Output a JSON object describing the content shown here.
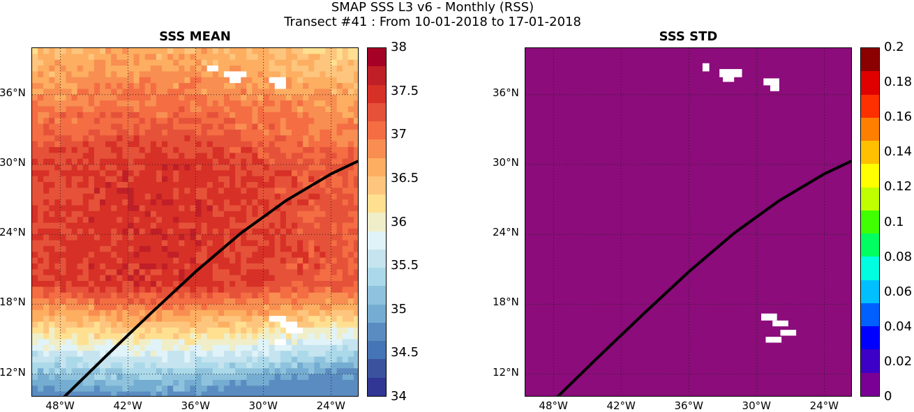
{
  "figure": {
    "title": "SMAP SSS L3 v6 - Monthly (RSS)",
    "subtitle": "Transect #41 : From 10-01-2018 to 17-01-2018"
  },
  "axes": {
    "lon_ticks": [
      "48°W",
      "42°W",
      "36°W",
      "30°W",
      "24°W"
    ],
    "lat_ticks": [
      "36°N",
      "30°N",
      "24°N",
      "18°N",
      "12°N"
    ]
  },
  "chart_data": [
    {
      "type": "heatmap",
      "title": "SSS MEAN",
      "xlim": [
        -50.5,
        -21.5
      ],
      "ylim": [
        10,
        40
      ],
      "grid": true,
      "colormap": "RdYlBu_r",
      "colorbar": {
        "min": 34,
        "max": 38,
        "ticks": [
          "38",
          "37.5",
          "37",
          "36.5",
          "36",
          "35.5",
          "35",
          "34.5",
          "34"
        ],
        "colors": [
          "#313695",
          "#3b539f",
          "#4575b4",
          "#5b8cc1",
          "#74add1",
          "#8fc3dd",
          "#abd9e9",
          "#c5e4ef",
          "#e0f3f8",
          "#f0eec8",
          "#fee090",
          "#fdc57d",
          "#fdae61",
          "#f88e51",
          "#f46d43",
          "#e55239",
          "#d73027",
          "#c01f27",
          "#a50026"
        ]
      },
      "field_description": "Salinity maxima (37.2-37.6) in the subtropical band 20-30N; fresher (34.8-35.8) south of 15N; 36-36.8 north of 33N",
      "missing_data": "white",
      "transect": {
        "color": "#000000",
        "lon": [
          -47.7,
          -44,
          -40,
          -36,
          -32,
          -28,
          -24,
          -21.6
        ],
        "lat": [
          10,
          13.5,
          17.2,
          20.8,
          24.1,
          26.9,
          29.2,
          30.3
        ]
      }
    },
    {
      "type": "heatmap",
      "title": "SSS STD",
      "xlim": [
        -50.5,
        -21.5
      ],
      "ylim": [
        10,
        40
      ],
      "grid": true,
      "colormap": "jet-like",
      "colorbar": {
        "min": 0,
        "max": 0.2,
        "ticks": [
          "0.2",
          "0.18",
          "0.16",
          "0.14",
          "0.12",
          "0.1",
          "0.08",
          "0.06",
          "0.04",
          "0.02",
          "0"
        ],
        "colors": [
          "#7a0095",
          "#3d00c8",
          "#0000ff",
          "#0060ff",
          "#00c0ff",
          "#00ffe0",
          "#00ff60",
          "#40ff00",
          "#c0ff00",
          "#ffff00",
          "#ffc000",
          "#ff8000",
          "#ff3000",
          "#e00000",
          "#8b0000"
        ]
      },
      "field_value": 0,
      "field_color": "#8b0c7a",
      "missing_data": "white",
      "transect": {
        "color": "#000000",
        "lon": [
          -47.7,
          -44,
          -40,
          -36,
          -32,
          -28,
          -24,
          -21.6
        ],
        "lat": [
          10,
          13.5,
          17.2,
          20.8,
          24.1,
          26.9,
          29.2,
          30.3
        ]
      }
    }
  ]
}
